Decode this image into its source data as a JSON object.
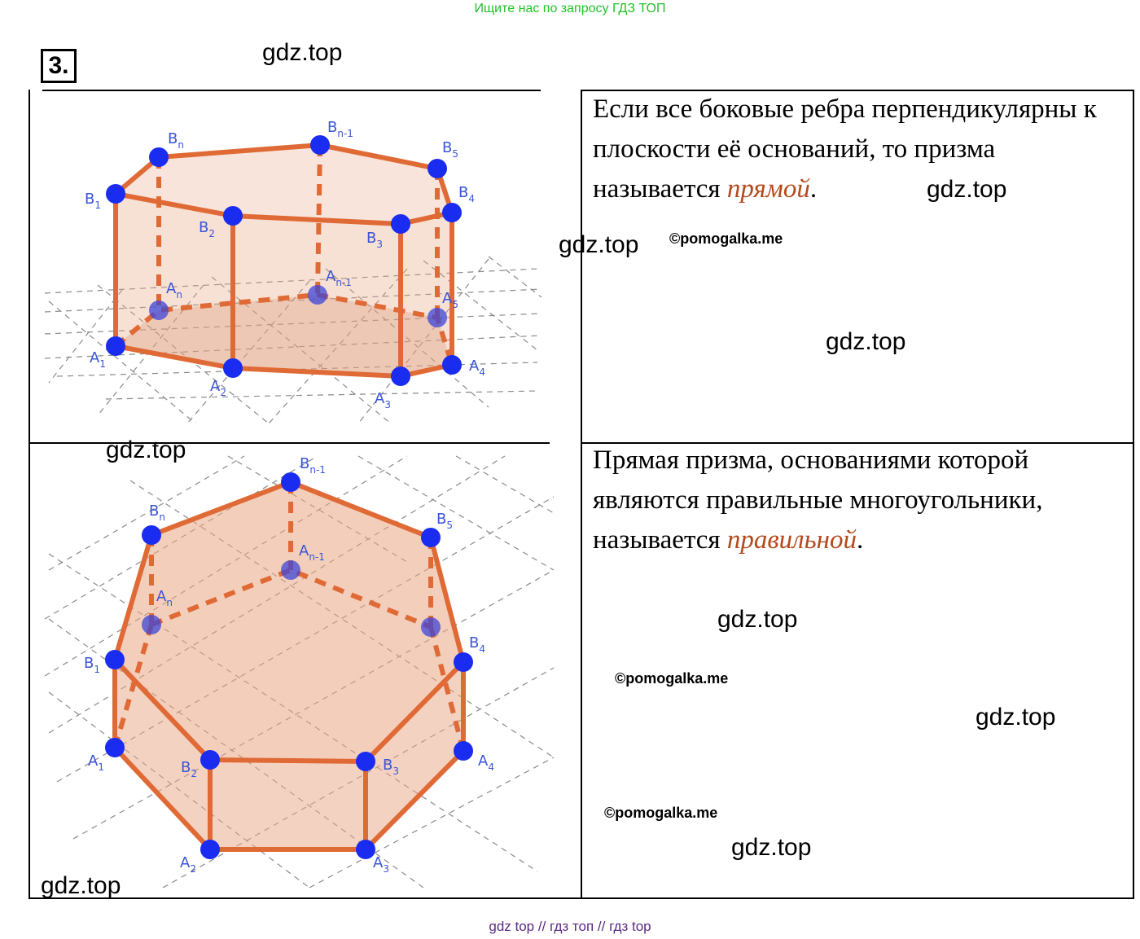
{
  "header": {
    "banner": "Ищите нас по запросу ГДЗ ТОП",
    "task_number": "3."
  },
  "rows": [
    {
      "text_before": "Если все боковые ребра перпендикулярны к плоскости её оснований, то призма называется ",
      "term": "прямой",
      "text_after": "."
    },
    {
      "text_before": "Прямая призма, основаниями которой являются правильные многоугольники, называется ",
      "term": "правильной",
      "text_after": "."
    }
  ],
  "watermarks": {
    "site": "gdz.top",
    "copyright": "©pomogalka.me"
  },
  "figure1_labels": {
    "B1": [
      "B",
      "1"
    ],
    "Bn": [
      "B",
      "n"
    ],
    "Bn1": [
      "B",
      "n-1"
    ],
    "B5": [
      "B",
      "5"
    ],
    "B4": [
      "B",
      "4"
    ],
    "B2": [
      "B",
      "2"
    ],
    "B3": [
      "B",
      "3"
    ],
    "An": [
      "A",
      "n"
    ],
    "An1": [
      "A",
      "n-1"
    ],
    "A5": [
      "A",
      "5"
    ],
    "A1": [
      "A",
      "1"
    ],
    "A2": [
      "A",
      "2"
    ],
    "A3": [
      "A",
      "3"
    ],
    "A4": [
      "A",
      "4"
    ]
  },
  "figure2_labels": {
    "Bn1": [
      "B",
      "n-1"
    ],
    "Bn": [
      "B",
      "n"
    ],
    "B5": [
      "B",
      "5"
    ],
    "An1": [
      "A",
      "n-1"
    ],
    "An": [
      "A",
      "n"
    ],
    "B1": [
      "B",
      "1"
    ],
    "B4": [
      "B",
      "4"
    ],
    "A1": [
      "A",
      "1"
    ],
    "A4": [
      "A",
      "4"
    ],
    "B2": [
      "B",
      "2"
    ],
    "B3": [
      "B",
      "3"
    ],
    "A2": [
      "A",
      "2"
    ],
    "A3": [
      "A",
      "3"
    ]
  },
  "footer": {
    "link1": "gdz top",
    "sep": "//",
    "link2": "гдз топ",
    "link3": "гдз top"
  },
  "colors": {
    "edge": "#e06a35",
    "point": "#1a2cf0",
    "label": "#3a55d5",
    "term": "#b4491a",
    "banner": "#22c22a"
  }
}
